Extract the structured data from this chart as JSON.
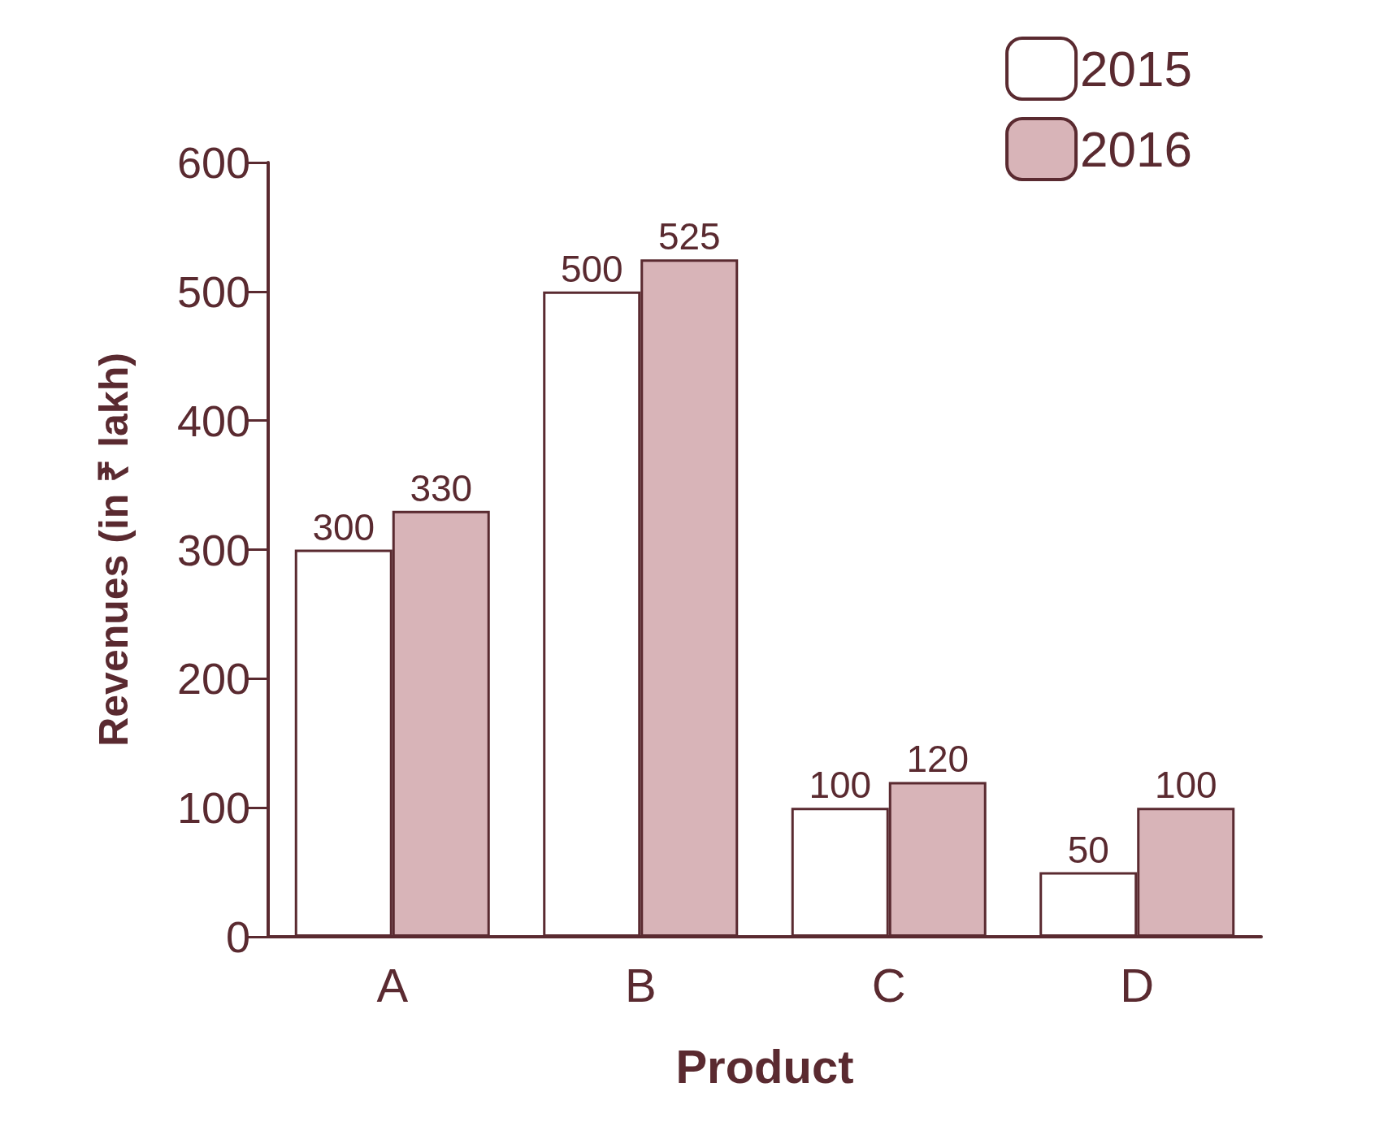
{
  "chart_data": {
    "type": "bar",
    "xlabel": "Product",
    "ylabel": "Revenues (in ₹ lakh)",
    "categories": [
      "A",
      "B",
      "C",
      "D"
    ],
    "series": [
      {
        "name": "2015",
        "color": "#ffffff",
        "values": [
          300,
          500,
          100,
          50
        ]
      },
      {
        "name": "2016",
        "color": "#d8b4b8",
        "values": [
          330,
          525,
          120,
          100
        ]
      }
    ],
    "ylim": [
      0,
      600
    ],
    "yticks": [
      0,
      100,
      200,
      300,
      400,
      500,
      600
    ],
    "grid": false,
    "legend": "top right",
    "data_labels": true
  }
}
